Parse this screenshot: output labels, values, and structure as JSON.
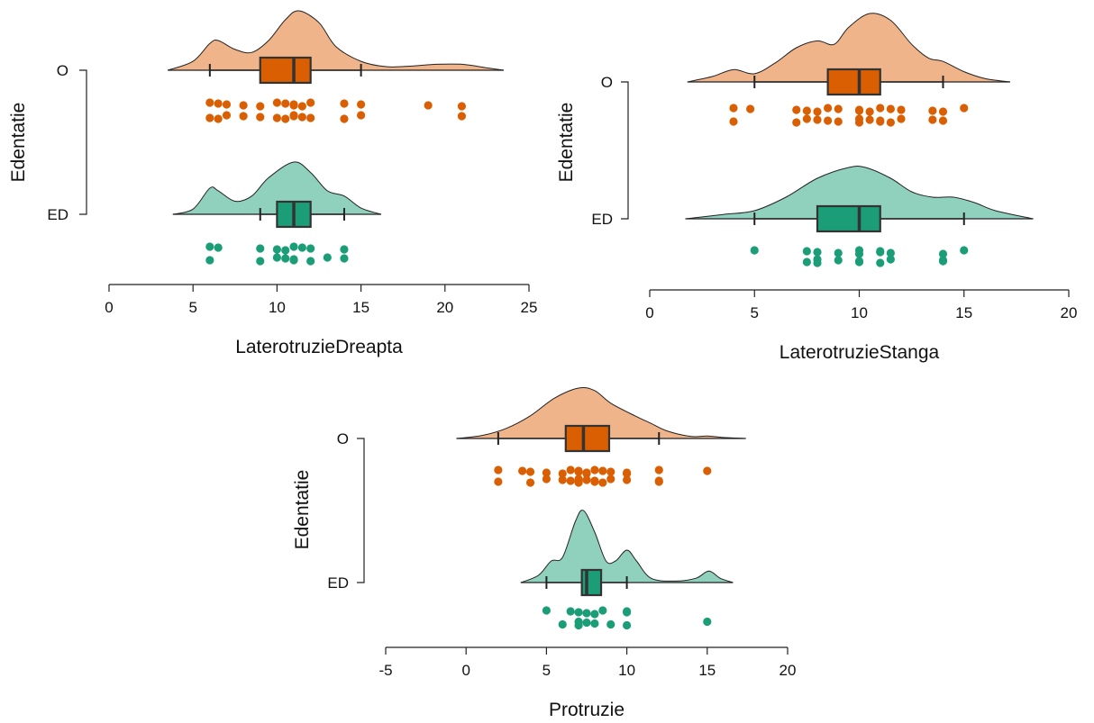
{
  "colors": {
    "O_box": "#d95f02",
    "O_density": "#f0b48a",
    "O_points": "#d95f02",
    "ED_box": "#1b9e77",
    "ED_density": "#8fd1bd",
    "ED_points": "#1b9e77",
    "outline": "#333333"
  },
  "chart_data": [
    {
      "type": "raincloud",
      "xlabel": "LaterotruzieDreapta",
      "ylabel": "Edentatie",
      "xlim": [
        0,
        25
      ],
      "xticks": [
        0,
        5,
        10,
        15,
        20,
        25
      ],
      "tick_labels": [
        "0",
        "5",
        "10",
        "15",
        "20",
        "25"
      ],
      "groups": [
        {
          "name": "O",
          "box": {
            "min": 6,
            "q1": 9,
            "median": 11,
            "q3": 12,
            "max": 15
          },
          "density": {
            "xmin": 3.5,
            "xmax": 23.5,
            "knots": [
              [
                3.5,
                0
              ],
              [
                5,
                0.15
              ],
              [
                6,
                0.45
              ],
              [
                6.5,
                0.5
              ],
              [
                7.5,
                0.35
              ],
              [
                8.5,
                0.3
              ],
              [
                9.5,
                0.5
              ],
              [
                10.5,
                0.85
              ],
              [
                11.3,
                1.0
              ],
              [
                12.5,
                0.8
              ],
              [
                13.5,
                0.4
              ],
              [
                15,
                0.15
              ],
              [
                16.5,
                0.06
              ],
              [
                18,
                0.07
              ],
              [
                19.5,
                0.1
              ],
              [
                21,
                0.1
              ],
              [
                22.5,
                0.04
              ],
              [
                23.5,
                0
              ]
            ]
          },
          "points": [
            6,
            6,
            6.5,
            6.5,
            7,
            7,
            8,
            8,
            9,
            9,
            10,
            10,
            10.5,
            10.5,
            11,
            11,
            11,
            11,
            11.5,
            11.5,
            12,
            12,
            14,
            14,
            15,
            15,
            19,
            21,
            21
          ]
        },
        {
          "name": "ED",
          "box": {
            "min": 9,
            "q1": 10,
            "median": 11,
            "q3": 12,
            "max": 14
          },
          "density": {
            "xmin": 3.8,
            "xmax": 16.2,
            "knots": [
              [
                3.8,
                0
              ],
              [
                5,
                0.1
              ],
              [
                6,
                0.5
              ],
              [
                6.5,
                0.45
              ],
              [
                7.5,
                0.25
              ],
              [
                8.5,
                0.35
              ],
              [
                9.5,
                0.7
              ],
              [
                11,
                1.0
              ],
              [
                12,
                0.8
              ],
              [
                13,
                0.45
              ],
              [
                14,
                0.35
              ],
              [
                15,
                0.12
              ],
              [
                16.2,
                0
              ]
            ]
          },
          "points": [
            6,
            6,
            6.5,
            9,
            9,
            10,
            10,
            10.5,
            10.5,
            11,
            11,
            11,
            11.5,
            12,
            12,
            13,
            14,
            14
          ]
        }
      ]
    },
    {
      "type": "raincloud",
      "xlabel": "LaterotruzieStanga",
      "ylabel": "Edentatie",
      "xlim": [
        0,
        20
      ],
      "xticks": [
        0,
        5,
        10,
        15,
        20
      ],
      "tick_labels": [
        "0",
        "5",
        "10",
        "15",
        "20"
      ],
      "groups": [
        {
          "name": "O",
          "box": {
            "min": 5,
            "q1": 8.5,
            "median": 10,
            "q3": 11,
            "max": 14
          },
          "density": {
            "xmin": 1.8,
            "xmax": 17.2,
            "knots": [
              [
                1.8,
                0
              ],
              [
                3,
                0.08
              ],
              [
                4,
                0.18
              ],
              [
                5,
                0.12
              ],
              [
                6,
                0.28
              ],
              [
                7,
                0.5
              ],
              [
                8,
                0.6
              ],
              [
                8.8,
                0.55
              ],
              [
                9.5,
                0.8
              ],
              [
                10.5,
                1.0
              ],
              [
                11.5,
                0.9
              ],
              [
                12.5,
                0.55
              ],
              [
                13.3,
                0.35
              ],
              [
                14,
                0.3
              ],
              [
                15,
                0.15
              ],
              [
                16,
                0.05
              ],
              [
                17.2,
                0
              ]
            ]
          },
          "points": [
            4,
            4,
            4.8,
            7,
            7,
            7.5,
            7.5,
            8,
            8,
            8.5,
            8.5,
            9,
            9,
            10,
            10,
            10,
            10,
            10.5,
            10.5,
            11,
            11,
            11,
            11.5,
            11.5,
            12,
            12,
            13.5,
            13.5,
            14,
            14,
            15
          ]
        },
        {
          "name": "ED",
          "box": {
            "min": 5,
            "q1": 8,
            "median": 10,
            "q3": 11,
            "max": 15
          },
          "density": {
            "xmin": 1.7,
            "xmax": 18.3,
            "knots": [
              [
                1.7,
                0
              ],
              [
                3.5,
                0.08
              ],
              [
                5,
                0.15
              ],
              [
                6.5,
                0.4
              ],
              [
                8,
                0.75
              ],
              [
                9.5,
                0.95
              ],
              [
                10.3,
                0.95
              ],
              [
                11.5,
                0.75
              ],
              [
                12.5,
                0.5
              ],
              [
                13.5,
                0.4
              ],
              [
                14.5,
                0.4
              ],
              [
                15.5,
                0.3
              ],
              [
                16.5,
                0.15
              ],
              [
                18.3,
                0
              ]
            ]
          },
          "points": [
            5,
            7.5,
            7.5,
            8,
            8,
            8,
            9,
            9,
            10,
            10,
            10,
            10,
            11,
            11,
            11,
            11.5,
            11.5,
            14,
            14,
            14,
            15
          ]
        }
      ]
    },
    {
      "type": "raincloud",
      "xlabel": "Protruzie",
      "ylabel": "Edentatie",
      "xlim": [
        -5,
        20
      ],
      "xticks": [
        -5,
        0,
        5,
        10,
        15,
        20
      ],
      "tick_labels": [
        "-5",
        "0",
        "5",
        "10",
        "15",
        "20"
      ],
      "groups": [
        {
          "name": "O",
          "box": {
            "min": 2,
            "q1": 6.2,
            "median": 7.3,
            "q3": 8.9,
            "max": 12
          },
          "density": {
            "xmin": -0.6,
            "xmax": 17.4,
            "knots": [
              [
                -0.6,
                0
              ],
              [
                1,
                0.06
              ],
              [
                2.5,
                0.2
              ],
              [
                4,
                0.45
              ],
              [
                5.5,
                0.8
              ],
              [
                7,
                1.0
              ],
              [
                8,
                0.95
              ],
              [
                9,
                0.7
              ],
              [
                10.5,
                0.45
              ],
              [
                11.5,
                0.3
              ],
              [
                12.5,
                0.15
              ],
              [
                14,
                0.04
              ],
              [
                15,
                0.05
              ],
              [
                16,
                0.02
              ],
              [
                17.4,
                0
              ]
            ]
          },
          "points": [
            2,
            2,
            3.5,
            4,
            4,
            5,
            5,
            6,
            6,
            6.5,
            6.5,
            7,
            7,
            7,
            7,
            7,
            7.5,
            7.5,
            7.5,
            8,
            8,
            8,
            8.5,
            8.5,
            9,
            9,
            10,
            10,
            10,
            12,
            12,
            12,
            15
          ]
        },
        {
          "name": "ED",
          "box": {
            "min": 5,
            "q1": 7.2,
            "median": 7.5,
            "q3": 8.4,
            "max": 10
          },
          "density": {
            "xmin": 3.4,
            "xmax": 16.6,
            "knots": [
              [
                3.4,
                0
              ],
              [
                4.5,
                0.1
              ],
              [
                5.3,
                0.3
              ],
              [
                6,
                0.35
              ],
              [
                6.8,
                0.85
              ],
              [
                7.3,
                1.0
              ],
              [
                8,
                0.7
              ],
              [
                8.7,
                0.3
              ],
              [
                9.3,
                0.3
              ],
              [
                10,
                0.45
              ],
              [
                10.6,
                0.3
              ],
              [
                11.5,
                0.06
              ],
              [
                13,
                0.02
              ],
              [
                14.3,
                0.06
              ],
              [
                15.1,
                0.16
              ],
              [
                15.8,
                0.06
              ],
              [
                16.6,
                0
              ]
            ]
          },
          "points": [
            5,
            6,
            6.5,
            7,
            7,
            7,
            7.5,
            7.5,
            8,
            8,
            8.5,
            9,
            10,
            10,
            10,
            15
          ]
        }
      ]
    }
  ]
}
